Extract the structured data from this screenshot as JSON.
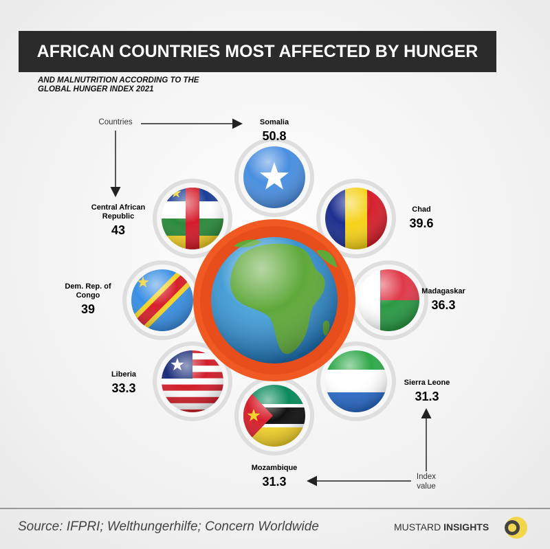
{
  "header": {
    "title": "AFRICAN COUNTRIES MOST AFFECTED BY HUNGER",
    "subtitle": "AND MALNUTRITION ACCORDING TO THE GLOBAL HUNGER INDEX 2021"
  },
  "annotations": {
    "countries": "Countries",
    "index": "Index value"
  },
  "countries": [
    {
      "name": "Somalia",
      "value": 50.8
    },
    {
      "name": "Central African Republic",
      "value": 43
    },
    {
      "name": "Chad",
      "value": 39.6
    },
    {
      "name": "Dem. Rep. of Congo",
      "value": 39
    },
    {
      "name": "Madagaskar",
      "value": 36.3
    },
    {
      "name": "Liberia",
      "value": 33.3
    },
    {
      "name": "Sierra Leone",
      "value": 31.3
    },
    {
      "name": "Mozambique",
      "value": 31.3
    }
  ],
  "footer": {
    "source": "Source: IFPRI; Welthungerhilfe; Concern Worldwide",
    "brand": "MUSTARD",
    "brand_bold": "INSIGHTS"
  }
}
